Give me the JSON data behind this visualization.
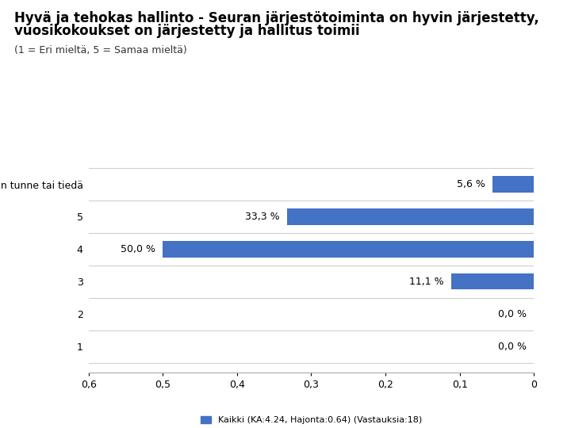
{
  "title_line1": "Hyvä ja tehokas hallinto - Seuran järjestötoiminta on hyvin järjestetty,",
  "title_line2": "vuosikokoukset on järjestetty ja hallitus toimii",
  "subtitle": "(1 = Eri mieltä, 5 = Samaa mieltä)",
  "categories": [
    "En tunne tai tiedä",
    "5",
    "4",
    "3",
    "2",
    "1"
  ],
  "values": [
    0.056,
    0.333,
    0.5,
    0.111,
    0.0,
    0.0
  ],
  "labels": [
    "5,6 %",
    "33,3 %",
    "50,0 %",
    "11,1 %",
    "0,0 %",
    "0,0 %"
  ],
  "bar_color": "#4472C4",
  "xlim_left": 0.6,
  "xlim_right": 0.0,
  "xtick_values": [
    0.6,
    0.5,
    0.4,
    0.3,
    0.2,
    0.1,
    0.0
  ],
  "xtick_labels": [
    "0,6",
    "0,5",
    "0,4",
    "0,3",
    "0,2",
    "0,1",
    "0"
  ],
  "legend_label": "Kaikki (KA:4.24, Hajonta:0.64) (Vastauksia:18)",
  "background_color": "#ffffff",
  "title_fontsize": 12,
  "subtitle_fontsize": 9,
  "category_fontsize": 9,
  "pct_label_fontsize": 9,
  "tick_fontsize": 9,
  "legend_fontsize": 8,
  "bar_height": 0.5,
  "separator_color": "#d0d0d0",
  "grid_color": "#e0e0e0"
}
